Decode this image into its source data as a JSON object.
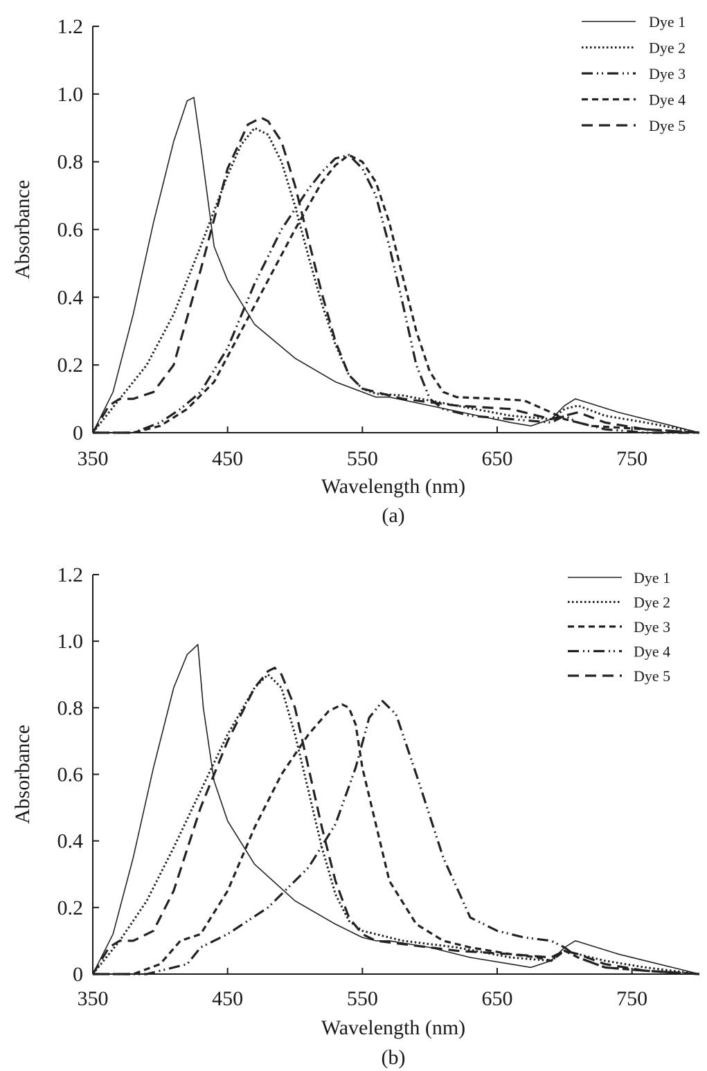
{
  "chart_data": [
    {
      "type": "line",
      "panel_label": "(a)",
      "xlabel": "Wavelength (nm)",
      "ylabel": "Absorbance",
      "xlim": [
        350,
        800
      ],
      "ylim": [
        0,
        1.2
      ],
      "x_ticks": [
        350,
        450,
        550,
        650,
        750
      ],
      "x_tick_labels": [
        "350",
        "450",
        "550",
        "650",
        "750"
      ],
      "y_ticks": [
        0,
        0.2,
        0.4,
        0.6,
        0.8,
        1.0,
        1.2
      ],
      "y_tick_labels": [
        "0",
        "0.2",
        "0.4",
        "0.6",
        "0.8",
        "1.0",
        "1.2"
      ],
      "grid": false,
      "legend_position": "top-right",
      "series": [
        {
          "name": "Dye 1",
          "style": "solid",
          "x": [
            350,
            365,
            380,
            395,
            410,
            420,
            425,
            430,
            440,
            450,
            470,
            500,
            530,
            550,
            560,
            570,
            600,
            630,
            660,
            675,
            690,
            700,
            708,
            720,
            740,
            760,
            780,
            800
          ],
          "y": [
            0,
            0.12,
            0.35,
            0.62,
            0.86,
            0.98,
            0.99,
            0.85,
            0.55,
            0.45,
            0.32,
            0.22,
            0.15,
            0.12,
            0.105,
            0.105,
            0.08,
            0.055,
            0.03,
            0.02,
            0.04,
            0.08,
            0.1,
            0.085,
            0.06,
            0.04,
            0.02,
            0
          ]
        },
        {
          "name": "Dye 2",
          "style": "dotted",
          "x": [
            350,
            370,
            390,
            410,
            430,
            450,
            460,
            470,
            480,
            490,
            500,
            510,
            520,
            530,
            540,
            550,
            560,
            580,
            620,
            660,
            690,
            700,
            710,
            730,
            760,
            780,
            800
          ],
          "y": [
            0,
            0.1,
            0.2,
            0.35,
            0.55,
            0.76,
            0.85,
            0.9,
            0.88,
            0.8,
            0.67,
            0.52,
            0.38,
            0.26,
            0.17,
            0.13,
            0.115,
            0.11,
            0.08,
            0.05,
            0.04,
            0.07,
            0.08,
            0.05,
            0.03,
            0.015,
            0
          ]
        },
        {
          "name": "Dye 3",
          "style": "dashdotdot",
          "x": [
            350,
            380,
            400,
            415,
            430,
            450,
            470,
            490,
            510,
            520,
            530,
            540,
            550,
            560,
            570,
            580,
            590,
            600,
            610,
            630,
            660,
            690,
            700,
            710,
            730,
            760,
            800
          ],
          "y": [
            0,
            0,
            0.03,
            0.07,
            0.12,
            0.25,
            0.44,
            0.6,
            0.72,
            0.77,
            0.81,
            0.82,
            0.78,
            0.7,
            0.55,
            0.38,
            0.2,
            0.1,
            0.07,
            0.05,
            0.04,
            0.03,
            0.05,
            0.03,
            0.01,
            0,
            0
          ]
        },
        {
          "name": "Dye 4",
          "style": "shortdash",
          "x": [
            350,
            380,
            400,
            420,
            440,
            460,
            480,
            500,
            520,
            530,
            540,
            550,
            560,
            570,
            580,
            590,
            600,
            610,
            620,
            650,
            670,
            690,
            700,
            720,
            760,
            800
          ],
          "y": [
            0,
            0,
            0.02,
            0.07,
            0.15,
            0.3,
            0.45,
            0.6,
            0.74,
            0.79,
            0.82,
            0.8,
            0.74,
            0.62,
            0.46,
            0.3,
            0.18,
            0.12,
            0.105,
            0.1,
            0.095,
            0.06,
            0.04,
            0.02,
            0.01,
            0
          ]
        },
        {
          "name": "Dye 5",
          "style": "longdash",
          "x": [
            350,
            362,
            370,
            380,
            395,
            410,
            430,
            450,
            465,
            475,
            480,
            490,
            500,
            510,
            520,
            530,
            540,
            550,
            560,
            580,
            620,
            660,
            690,
            700,
            710,
            730,
            760,
            800
          ],
          "y": [
            0,
            0.08,
            0.1,
            0.1,
            0.12,
            0.2,
            0.48,
            0.78,
            0.91,
            0.93,
            0.92,
            0.86,
            0.73,
            0.57,
            0.41,
            0.27,
            0.17,
            0.13,
            0.12,
            0.1,
            0.08,
            0.07,
            0.04,
            0.05,
            0.06,
            0.03,
            0.01,
            0
          ]
        }
      ]
    },
    {
      "type": "line",
      "panel_label": "(b)",
      "xlabel": "Wavelength (nm)",
      "ylabel": "Absorbance",
      "xlim": [
        350,
        800
      ],
      "ylim": [
        0,
        1.2
      ],
      "x_ticks": [
        350,
        450,
        550,
        650,
        750
      ],
      "x_tick_labels": [
        "350",
        "450",
        "550",
        "650",
        "750"
      ],
      "y_ticks": [
        0,
        0.2,
        0.4,
        0.6,
        0.8,
        1.0,
        1.2
      ],
      "y_tick_labels": [
        "0",
        "0.2",
        "0.4",
        "0.6",
        "0.8",
        "1.0",
        "1.2"
      ],
      "grid": false,
      "legend_position": "top-right",
      "series": [
        {
          "name": "Dye 1",
          "style": "solid",
          "x": [
            350,
            365,
            380,
            395,
            410,
            420,
            428,
            432,
            440,
            450,
            470,
            500,
            530,
            550,
            560,
            570,
            600,
            630,
            660,
            675,
            690,
            700,
            708,
            720,
            740,
            760,
            780,
            800
          ],
          "y": [
            0,
            0.12,
            0.35,
            0.62,
            0.86,
            0.96,
            0.99,
            0.8,
            0.58,
            0.46,
            0.33,
            0.22,
            0.15,
            0.11,
            0.1,
            0.1,
            0.08,
            0.05,
            0.03,
            0.02,
            0.04,
            0.08,
            0.1,
            0.085,
            0.06,
            0.04,
            0.02,
            0
          ]
        },
        {
          "name": "Dye 2",
          "style": "dotted",
          "x": [
            350,
            370,
            390,
            410,
            430,
            450,
            470,
            480,
            490,
            500,
            510,
            520,
            530,
            540,
            550,
            560,
            580,
            620,
            660,
            690,
            700,
            710,
            730,
            760,
            780,
            800
          ],
          "y": [
            0,
            0.1,
            0.22,
            0.38,
            0.55,
            0.72,
            0.86,
            0.9,
            0.86,
            0.72,
            0.55,
            0.38,
            0.24,
            0.16,
            0.13,
            0.12,
            0.1,
            0.08,
            0.05,
            0.04,
            0.07,
            0.06,
            0.04,
            0.02,
            0.01,
            0
          ]
        },
        {
          "name": "Dye 3",
          "style": "shortdash",
          "x": [
            350,
            380,
            400,
            415,
            430,
            450,
            470,
            490,
            510,
            525,
            535,
            540,
            545,
            550,
            560,
            570,
            590,
            610,
            630,
            660,
            680,
            690,
            700,
            710,
            730,
            760,
            800
          ],
          "y": [
            0,
            0,
            0.03,
            0.1,
            0.12,
            0.25,
            0.44,
            0.6,
            0.72,
            0.79,
            0.81,
            0.8,
            0.75,
            0.62,
            0.45,
            0.28,
            0.15,
            0.1,
            0.08,
            0.06,
            0.05,
            0.04,
            0.07,
            0.05,
            0.02,
            0.01,
            0
          ]
        },
        {
          "name": "Dye 4",
          "style": "dashdotdot",
          "x": [
            350,
            390,
            400,
            420,
            430,
            450,
            480,
            510,
            530,
            545,
            555,
            565,
            575,
            590,
            610,
            630,
            650,
            670,
            690,
            700,
            710,
            730,
            760,
            800
          ],
          "y": [
            0,
            0,
            0.01,
            0.03,
            0.08,
            0.12,
            0.2,
            0.32,
            0.45,
            0.62,
            0.77,
            0.82,
            0.78,
            0.6,
            0.35,
            0.17,
            0.13,
            0.11,
            0.1,
            0.08,
            0.05,
            0.02,
            0.01,
            0
          ]
        },
        {
          "name": "Dye 5",
          "style": "longdash",
          "x": [
            350,
            362,
            370,
            380,
            395,
            410,
            430,
            450,
            470,
            480,
            485,
            490,
            500,
            510,
            520,
            530,
            540,
            550,
            560,
            580,
            620,
            660,
            690,
            700,
            710,
            730,
            760,
            800
          ],
          "y": [
            0,
            0.08,
            0.1,
            0.1,
            0.13,
            0.25,
            0.5,
            0.7,
            0.86,
            0.91,
            0.92,
            0.9,
            0.8,
            0.62,
            0.44,
            0.28,
            0.17,
            0.12,
            0.1,
            0.09,
            0.07,
            0.06,
            0.05,
            0.07,
            0.06,
            0.03,
            0.01,
            0
          ]
        }
      ]
    }
  ]
}
